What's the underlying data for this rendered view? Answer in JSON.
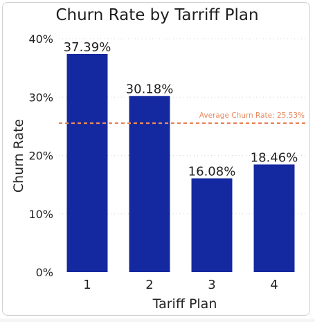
{
  "chart_data": {
    "type": "bar",
    "title": "Churn Rate by Tarriff Plan",
    "xlabel": "Tariff Plan",
    "ylabel": "Churn Rate",
    "categories": [
      "1",
      "2",
      "3",
      "4"
    ],
    "values": [
      37.39,
      30.18,
      16.08,
      18.46
    ],
    "data_labels": [
      "37.39%",
      "30.18%",
      "16.08%",
      "18.46%"
    ],
    "ylim": [
      0,
      40
    ],
    "yticks": [
      0,
      10,
      20,
      30,
      40
    ],
    "ytick_labels": [
      "0%",
      "10%",
      "20%",
      "30%",
      "40%"
    ],
    "grid": true,
    "reference_line": {
      "value": 25.53,
      "label": "Average Churn Rate: 25.53%",
      "color": "#e8875d"
    },
    "colors": {
      "bar": "#1428a0",
      "grid": "#d4d4d4"
    }
  }
}
